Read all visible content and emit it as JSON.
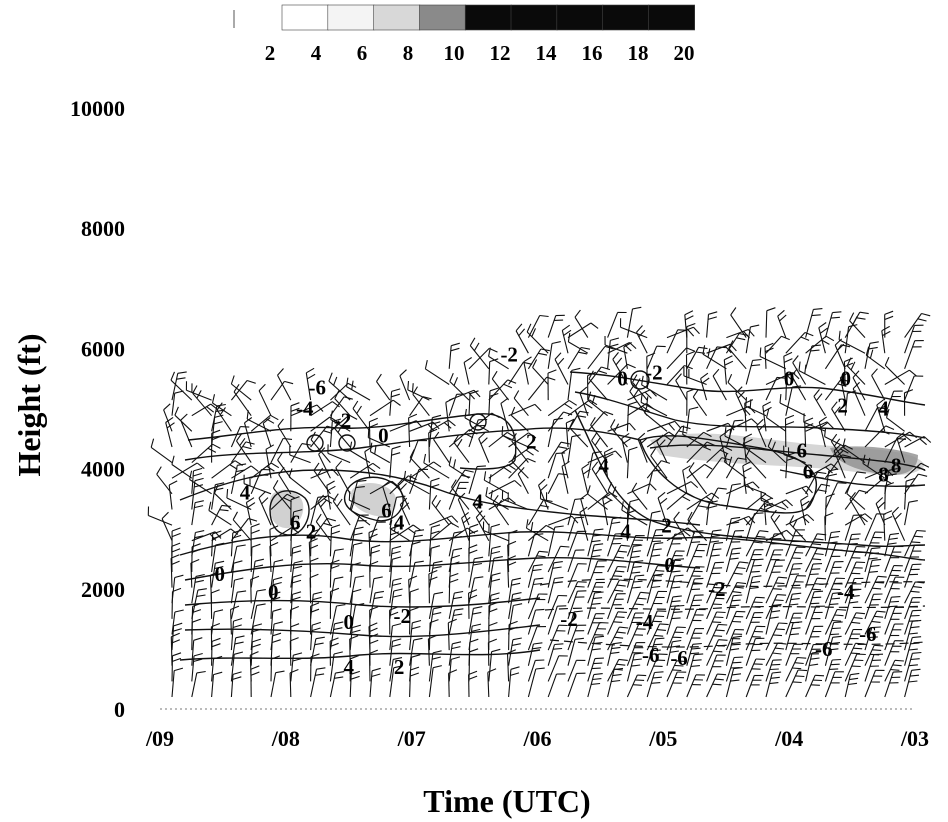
{
  "chart_data": {
    "type": "time-height wind profile with contours",
    "xlabel": "Time (UTC)",
    "ylabel": "Height (ft)",
    "x_ticks": [
      "/09",
      "/08",
      "/07",
      "/06",
      "/05",
      "/04",
      "/03"
    ],
    "y_ticks": [
      0,
      2000,
      4000,
      6000,
      8000,
      10000
    ],
    "ylim": [
      0,
      10000
    ],
    "x_axis_direction": "time decreasing left to right",
    "colorbar": {
      "labels": [
        2,
        4,
        6,
        8,
        10,
        12,
        14,
        16,
        18,
        20
      ],
      "shades": [
        "#ffffff",
        "#f4f4f4",
        "#d8d8d8",
        "#8a8a8a",
        "#0a0a0a",
        "#0a0a0a",
        "#0a0a0a",
        "#0a0a0a",
        "#0a0a0a"
      ]
    },
    "contour_labels": [
      {
        "text": "-6",
        "x": 2.5,
        "y": 5350
      },
      {
        "text": "-4",
        "x": 2.3,
        "y": 5000
      },
      {
        "text": "-2",
        "x": 2.9,
        "y": 4800
      },
      {
        "text": "0",
        "x": 3.55,
        "y": 4550
      },
      {
        "text": "-2",
        "x": 5.55,
        "y": 5900
      },
      {
        "text": "2",
        "x": 5.9,
        "y": 4450
      },
      {
        "text": "0",
        "x": 7.35,
        "y": 5500
      },
      {
        "text": "-2",
        "x": 7.85,
        "y": 5600
      },
      {
        "text": "0",
        "x": 10.0,
        "y": 5500
      },
      {
        "text": "0",
        "x": 10.9,
        "y": 5500
      },
      {
        "text": "2",
        "x": 10.85,
        "y": 5050
      },
      {
        "text": "4",
        "x": 11.5,
        "y": 5000
      },
      {
        "text": "4",
        "x": 7.05,
        "y": 4050
      },
      {
        "text": "6",
        "x": 10.2,
        "y": 4300
      },
      {
        "text": "6",
        "x": 10.3,
        "y": 3950
      },
      {
        "text": "8",
        "x": 11.7,
        "y": 4050
      },
      {
        "text": "8",
        "x": 11.5,
        "y": 3900
      },
      {
        "text": "4",
        "x": 1.35,
        "y": 3600
      },
      {
        "text": "6",
        "x": 2.15,
        "y": 3100
      },
      {
        "text": "2",
        "x": 2.4,
        "y": 2950
      },
      {
        "text": "6",
        "x": 3.6,
        "y": 3300
      },
      {
        "text": "4",
        "x": 3.8,
        "y": 3100
      },
      {
        "text": "4",
        "x": 5.05,
        "y": 3450
      },
      {
        "text": "4",
        "x": 7.4,
        "y": 2950
      },
      {
        "text": "2",
        "x": 8.05,
        "y": 3050
      },
      {
        "text": "0",
        "x": 8.1,
        "y": 2400
      },
      {
        "text": "0",
        "x": 0.95,
        "y": 2250
      },
      {
        "text": "0",
        "x": 1.8,
        "y": 1950
      },
      {
        "text": "0",
        "x": 3.0,
        "y": 1450
      },
      {
        "text": "-2",
        "x": 3.85,
        "y": 1550
      },
      {
        "text": "-2",
        "x": 6.5,
        "y": 1500
      },
      {
        "text": "-4",
        "x": 7.7,
        "y": 1450
      },
      {
        "text": "-2",
        "x": 8.85,
        "y": 2000
      },
      {
        "text": "-4",
        "x": 10.9,
        "y": 1950
      },
      {
        "text": "-6",
        "x": 7.8,
        "y": 900
      },
      {
        "text": "-6",
        "x": 8.25,
        "y": 850
      },
      {
        "text": "-6",
        "x": 10.55,
        "y": 1000
      },
      {
        "text": "-6",
        "x": 11.25,
        "y": 1250
      },
      {
        "text": "4",
        "x": 3.0,
        "y": 700
      },
      {
        "text": "2",
        "x": 3.8,
        "y": 700
      }
    ]
  }
}
